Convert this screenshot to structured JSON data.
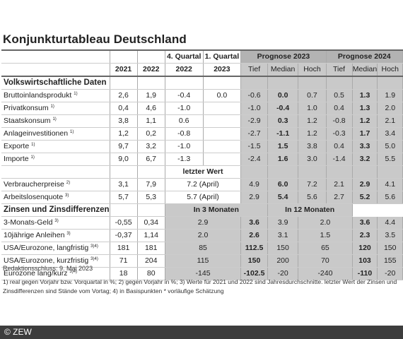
{
  "title": "Konjunkturtableau Deutschland",
  "header": {
    "q4": "4. Quartal",
    "q1": "1. Quartal",
    "prog2023": "Prognose 2023",
    "prog2024": "Prognose 2024",
    "y2021": "2021",
    "y2022": "2022",
    "y2022q": "2022",
    "y2023q": "2023",
    "tief": "Tief",
    "median": "Median",
    "hoch": "Hoch"
  },
  "section1": "Volkswirtschaftliche Daten",
  "rows1": [
    {
      "label": "Bruttoinlandsprodukt",
      "sup": "1)",
      "v": [
        "2,6",
        "1,9",
        "-0.4",
        "0.0",
        "-0.6",
        "0.0",
        "0.7",
        "0.5",
        "1.3",
        "1.9"
      ]
    },
    {
      "label": "Privatkonsum",
      "sup": "1)",
      "v": [
        "0,4",
        "4,6",
        "-1.0",
        "",
        "-1.0",
        "-0.4",
        "1.0",
        "0.4",
        "1.3",
        "2.0"
      ]
    },
    {
      "label": "Staatskonsum",
      "sup": "1)",
      "v": [
        "3,8",
        "1,1",
        "0.6",
        "",
        "-2.9",
        "0.3",
        "1.2",
        "-0.8",
        "1.2",
        "2.1"
      ]
    },
    {
      "label": "Anlageinvestitionen",
      "sup": "1)",
      "v": [
        "1,2",
        "0,2",
        "-0.8",
        "",
        "-2.7",
        "-1.1",
        "1.2",
        "-0.3",
        "1.7",
        "3.4"
      ]
    },
    {
      "label": "Exporte",
      "sup": "1)",
      "v": [
        "9,7",
        "3,2",
        "-1.0",
        "",
        "-1.5",
        "1.5",
        "3.8",
        "0.4",
        "3.3",
        "5.0"
      ]
    },
    {
      "label": "Importe",
      "sup": "1)",
      "v": [
        "9,0",
        "6,7",
        "-1.3",
        "",
        "-2.4",
        "1.6",
        "3.0",
        "-1.4",
        "3.2",
        "5.5"
      ]
    }
  ],
  "letzter": "letzter Wert",
  "rows2": [
    {
      "label": "Verbraucherpreise",
      "sup": "2)",
      "v": [
        "3,1",
        "7,9",
        "7.2 (April)",
        "4.9",
        "6.0",
        "7.2",
        "2.1",
        "2.9",
        "4.1"
      ]
    },
    {
      "label": "Arbeitslosenquote",
      "sup": "3)",
      "v": [
        "5,7",
        "5,3",
        "5.7 (April)",
        "2.9",
        "5.4",
        "5.6",
        "2.7",
        "5.2",
        "5.6"
      ]
    }
  ],
  "section2": "Zinsen und Zinsdifferenzen",
  "in3": "In 3 Monaten",
  "in12": "In 12 Monaten",
  "rows3": [
    {
      "label": "3-Monats-Geld",
      "sup": "3)",
      "v": [
        "-0,55",
        "0,34",
        "2.9",
        "3.6",
        "3.9",
        "2.0",
        "3.6",
        "4.4"
      ]
    },
    {
      "label": "10jährige Anleihen",
      "sup": "3)",
      "v": [
        "-0,37",
        "1,14",
        "2.0",
        "2.6",
        "3.1",
        "1.5",
        "2.3",
        "3.5"
      ]
    },
    {
      "label": "USA/Eurozone, langfristig",
      "sup": "3)4)",
      "v": [
        "181",
        "181",
        "85",
        "112.5",
        "150",
        "65",
        "120",
        "150"
      ]
    },
    {
      "label": "USA/Eurozone, kurzfristig",
      "sup": "3)4)",
      "v": [
        "71",
        "204",
        "115",
        "150",
        "200",
        "70",
        "103",
        "155"
      ]
    },
    {
      "label": "Eurozone lang/kurz",
      "sup": "3)4)",
      "v": [
        "18",
        "80",
        "-145",
        "-102.5",
        "-20",
        "-240",
        "-110",
        "-20"
      ]
    }
  ],
  "notes": {
    "date": "Redaktionsschluss: 9. Mai 2023",
    "text": "1) real gegen Vorjahr bzw. Vorquartal in %; 2) gegen Vorjahr in %; 3) Werte für 2021 und 2022 sind Jahresdurchschnitte. letzter Wert der Zinsen und Zinsdifferenzen sind Stände vom Vortag; 4) in Basispunkten * vorläufige Schätzung"
  },
  "footer": "© ZEW"
}
